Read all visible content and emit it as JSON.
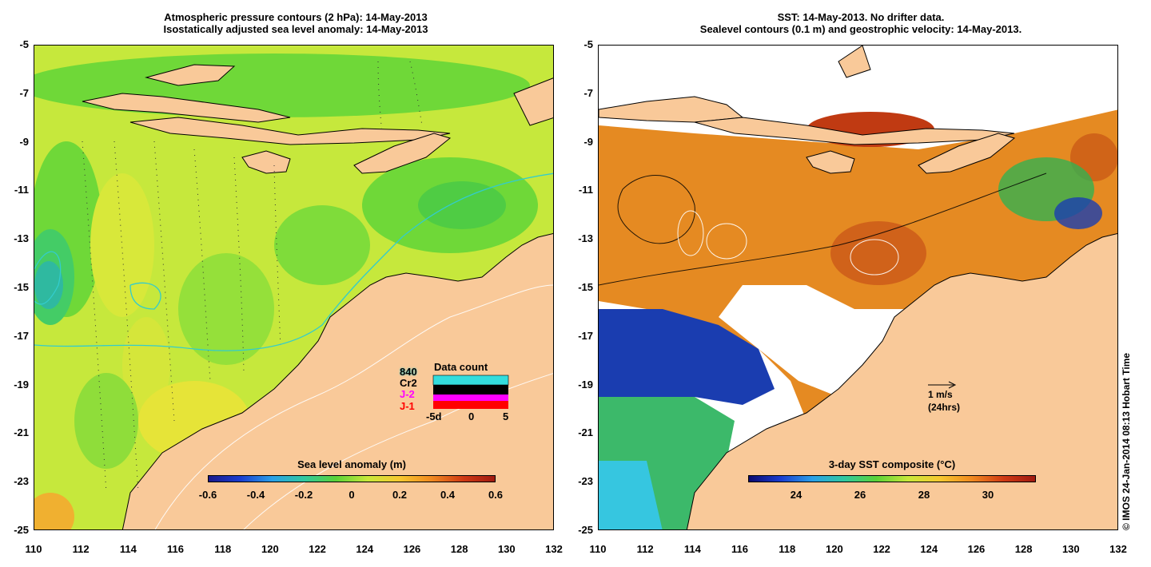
{
  "left_panel": {
    "title_line1": "Atmospheric pressure contours (2 hPa): 14-May-2013",
    "title_line2": "Isostatically adjusted sea level anomaly: 14-May-2013",
    "y_ticks": [
      "-5",
      "-7",
      "-9",
      "-11",
      "-13",
      "-15",
      "-17",
      "-19",
      "-21",
      "-23",
      "-25"
    ],
    "x_ticks": [
      "110",
      "112",
      "114",
      "116",
      "118",
      "120",
      "122",
      "124",
      "126",
      "128",
      "130",
      "132"
    ],
    "colorbar": {
      "title": "Sea level anomaly (m)",
      "ticks": [
        "-0.6",
        "-0.4",
        "-0.2",
        "0",
        "0.2",
        "0.4",
        "0.6"
      ],
      "range": [
        -0.6,
        0.6
      ]
    },
    "legend": {
      "satellites": [
        {
          "label": "840",
          "color": "#33cccc"
        },
        {
          "label": "Cr2",
          "color": "#000000"
        },
        {
          "label": "J-2",
          "color": "#ff00ff"
        },
        {
          "label": "J-1",
          "color": "#ff0000"
        }
      ],
      "data_count_title": "Data count",
      "data_count_ticks": [
        "-5d",
        "0",
        "5"
      ]
    }
  },
  "right_panel": {
    "title_line1": "SST: 14-May-2013. No drifter data.",
    "title_line2": "Sealevel contours (0.1 m) and geostrophic velocity: 14-May-2013.",
    "y_ticks": [
      "-5",
      "-7",
      "-9",
      "-11",
      "-13",
      "-15",
      "-17",
      "-19",
      "-21",
      "-23",
      "-25"
    ],
    "x_ticks": [
      "110",
      "112",
      "114",
      "116",
      "118",
      "120",
      "122",
      "124",
      "126",
      "128",
      "130",
      "132"
    ],
    "colorbar": {
      "title": "3-day SST composite (°C)",
      "ticks": [
        "24",
        "26",
        "28",
        "30"
      ],
      "range": [
        22.5,
        31.5
      ]
    },
    "velocity_scale": {
      "line1": "1 m/s",
      "line2": "(24hrs)"
    }
  },
  "copyright": "© IMOS 24-Jan-2014 08:13 Hobart Time",
  "colors": {
    "land": "#f9c999",
    "sea_left": "#bfe83a",
    "sea_left_green": "#66dd33",
    "sst_orange": "#e58a22",
    "sst_red": "#c03a12",
    "sst_blue": "#1a3db0",
    "sst_green": "#3cb96a",
    "contour_cyan": "#33cccc"
  }
}
